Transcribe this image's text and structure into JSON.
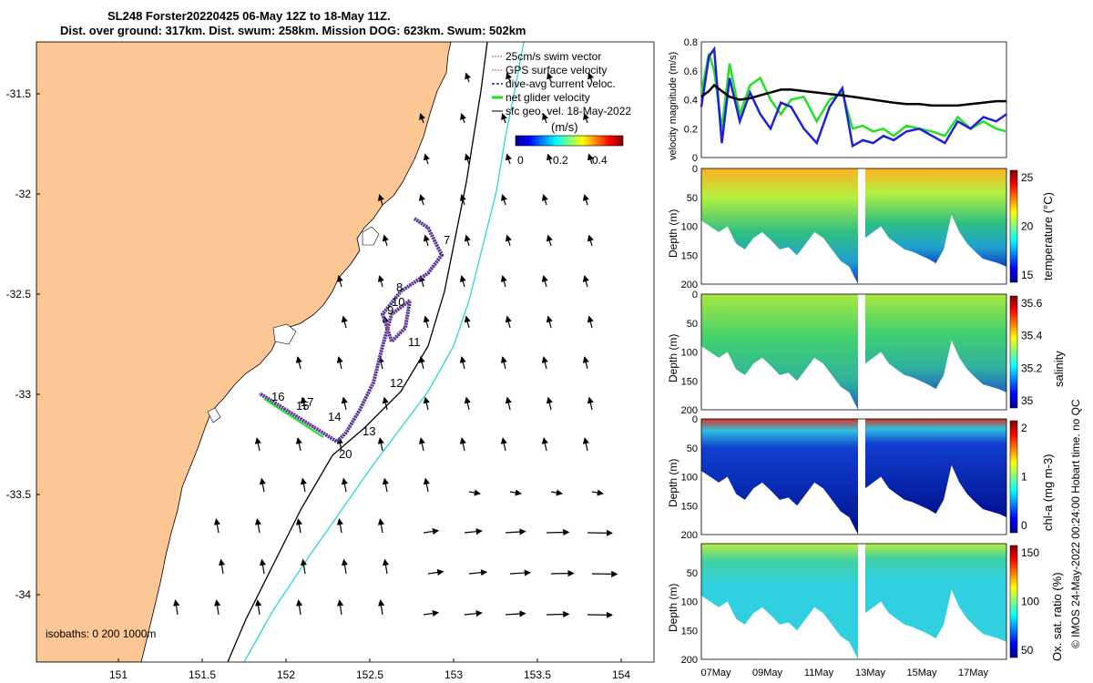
{
  "title_line1": "SL248 Forster20220425 06-May 12Z to 18-May 11Z.",
  "title_line2": "Dist. over ground: 317km. Dist. swum: 258km. Mission DOG: 623km. Swum: 502km",
  "colors": {
    "land": "#fcc795",
    "ocean": "#ffffff",
    "isobath_200": "#000000",
    "isobath_1000": "#2ad6d6",
    "series_gps": "#000000",
    "series_dac": "#1f1fdd",
    "series_net": "#22e122"
  },
  "map": {
    "legend": {
      "entries": [
        "25cm/s swim vector",
        "GPS surface velocity",
        "dive-avg current veloc.",
        "net glider velocity",
        "sfc geo. vel. 18-May-2022"
      ],
      "colorbar_unit": "(m/s)",
      "colorbar_ticks": [
        "0",
        "0.2",
        "0.4"
      ]
    },
    "isobath_label": "isobaths: 0   200  1000m",
    "lat_ticks": [
      "-31.5",
      "-32",
      "-32.5",
      "-33",
      "-33.5",
      "-34"
    ],
    "lon_ticks": [
      "151",
      "151.5",
      "152",
      "152.5",
      "153",
      "153.5",
      "154"
    ],
    "day_labels": [
      "7",
      "8",
      "9",
      "10",
      "11",
      "12",
      "13",
      "14",
      "15",
      "16",
      "17",
      "20"
    ]
  },
  "chart_data": [
    {
      "type": "line",
      "title": "",
      "ylabel": "velocity magnitude (m/s)",
      "ylim": [
        0,
        0.8
      ],
      "yticks": [
        "0",
        "0.2",
        "0.4",
        "0.6",
        "0.8"
      ],
      "x_days": [
        6.5,
        6.8,
        7.0,
        7.3,
        7.6,
        8.0,
        8.4,
        8.8,
        9.2,
        9.6,
        10.0,
        10.5,
        11.0,
        11.5,
        12.0,
        12.4,
        12.8,
        13.2,
        13.6,
        14.0,
        14.5,
        15.0,
        15.5,
        16.0,
        16.5,
        17.0,
        17.5,
        18.0,
        18.4
      ],
      "series": [
        {
          "name": "GPS surface velocity",
          "values": [
            0.42,
            0.46,
            0.5,
            0.46,
            0.42,
            0.4,
            0.41,
            0.43,
            0.45,
            0.47,
            0.47,
            0.46,
            0.45,
            0.44,
            0.43,
            0.42,
            0.41,
            0.4,
            0.39,
            0.38,
            0.37,
            0.37,
            0.36,
            0.36,
            0.36,
            0.37,
            0.38,
            0.39,
            0.39
          ]
        },
        {
          "name": "dive-avg current veloc.",
          "values": [
            0.35,
            0.7,
            0.75,
            0.1,
            0.55,
            0.25,
            0.45,
            0.3,
            0.2,
            0.38,
            0.35,
            0.2,
            0.1,
            0.35,
            0.48,
            0.08,
            0.12,
            0.1,
            0.15,
            0.12,
            0.18,
            0.2,
            0.15,
            0.1,
            0.25,
            0.2,
            0.28,
            0.25,
            0.3
          ]
        },
        {
          "name": "net glider velocity",
          "values": [
            0.45,
            0.72,
            0.6,
            0.2,
            0.65,
            0.3,
            0.5,
            0.55,
            0.4,
            0.3,
            0.4,
            0.42,
            0.25,
            0.4,
            0.45,
            0.2,
            0.22,
            0.18,
            0.2,
            0.15,
            0.22,
            0.2,
            0.18,
            0.15,
            0.28,
            0.2,
            0.25,
            0.2,
            0.18
          ]
        }
      ]
    },
    {
      "type": "heatmap",
      "ylabel": "Depth (m)",
      "colorbar_label": "temperature (°C)",
      "colorbar_ticks": [
        "25",
        "20",
        "15"
      ],
      "yticks": [
        "0",
        "50",
        "100",
        "150",
        "200"
      ]
    },
    {
      "type": "heatmap",
      "ylabel": "Depth (m)",
      "colorbar_label": "salinity",
      "colorbar_ticks": [
        "35.6",
        "35.4",
        "35.2",
        "35"
      ],
      "yticks": [
        "0",
        "50",
        "100",
        "150",
        "200"
      ]
    },
    {
      "type": "heatmap",
      "ylabel": "Depth (m)",
      "colorbar_label": "chl-a (mg m-3)",
      "colorbar_ticks": [
        "2",
        "1",
        "0"
      ],
      "yticks": [
        "0",
        "50",
        "100",
        "150",
        "200"
      ]
    },
    {
      "type": "heatmap",
      "ylabel": "Depth (m)",
      "colorbar_label": "Ox. sat. ratio (%)",
      "colorbar_ticks": [
        "150",
        "100",
        "50"
      ],
      "yticks": [
        "50",
        "100",
        "150",
        "200"
      ],
      "xticks": [
        "07May",
        "09May",
        "11May",
        "13May",
        "15May",
        "17May"
      ]
    }
  ],
  "footer": "© IMOS 24-May-2022 00:24:00 Hobart time. no QC"
}
